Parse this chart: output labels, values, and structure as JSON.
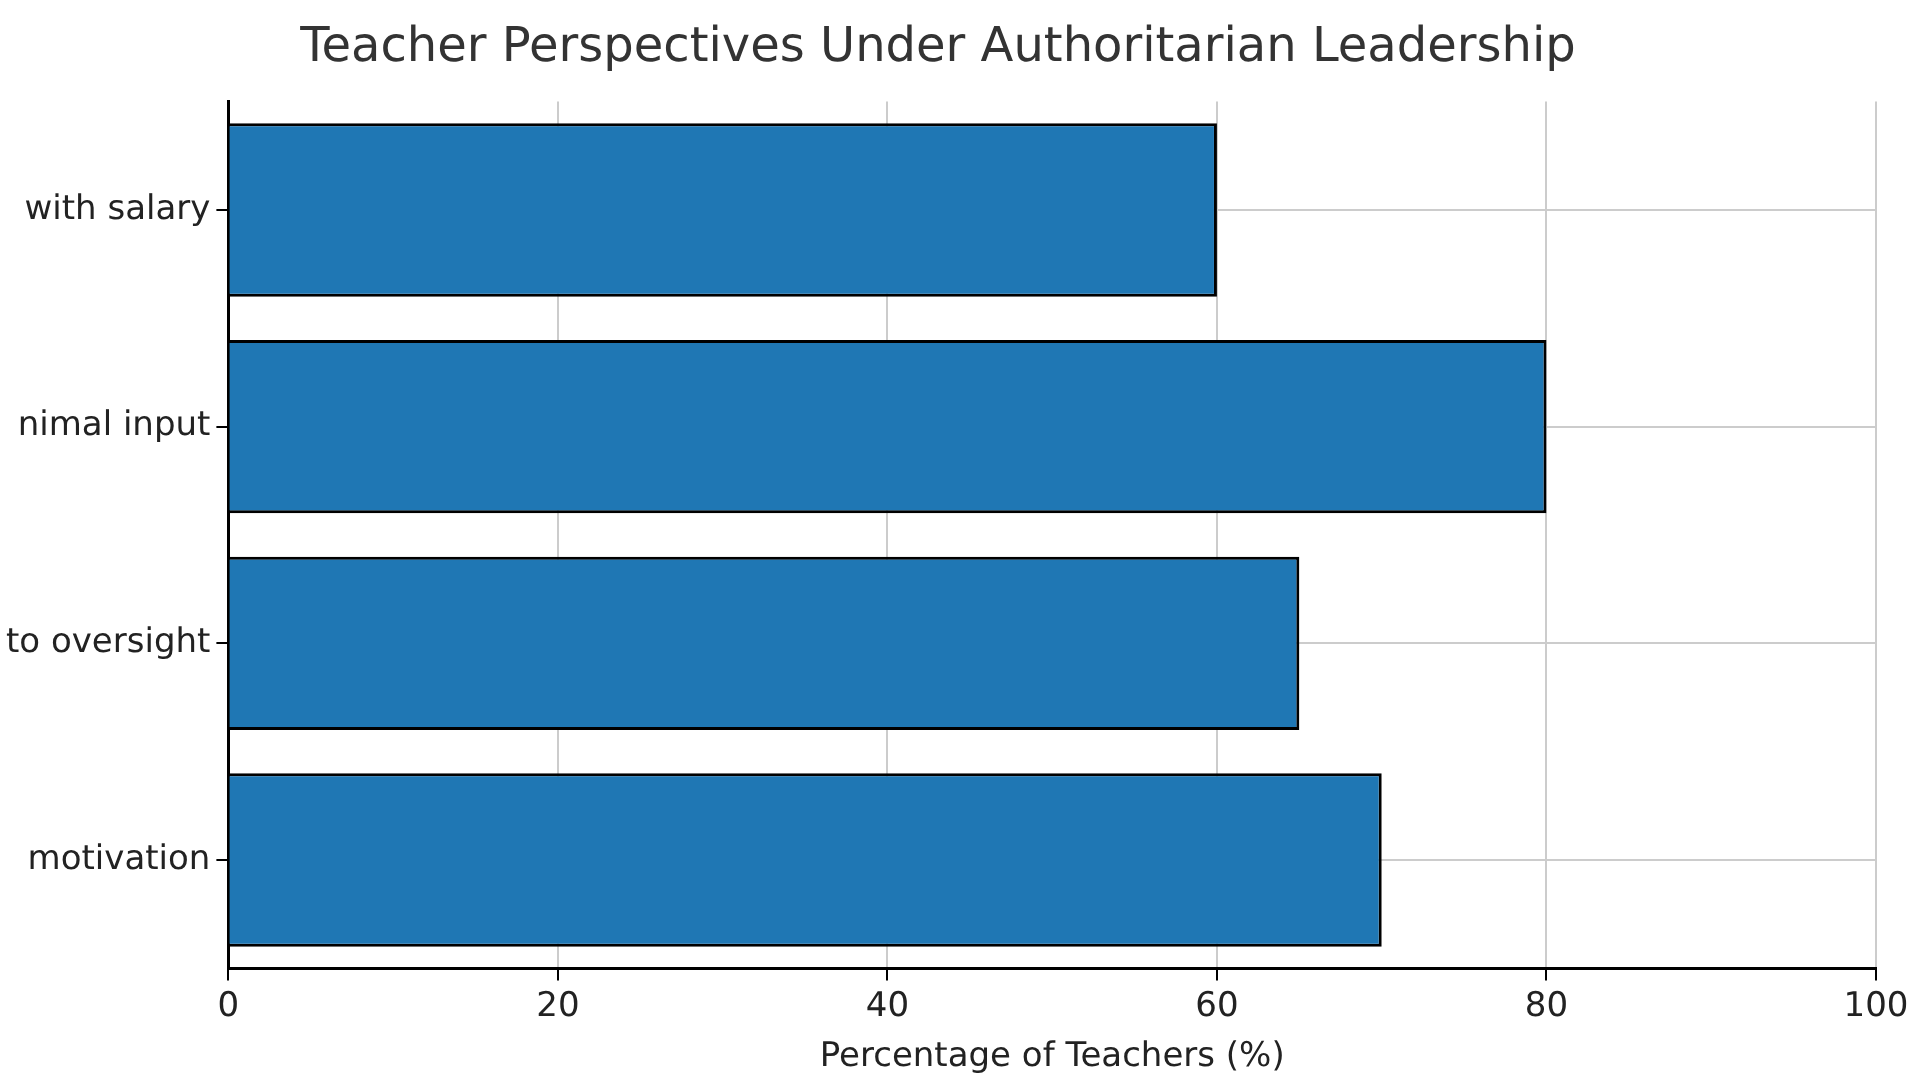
{
  "chart_data": {
    "type": "bar",
    "orientation": "horizontal",
    "title": "Teacher Perspectives Under Authoritarian Leadership",
    "xlabel": "Percentage of Teachers (%)",
    "categories": [
      "with salary",
      "nimal input",
      "to oversight",
      "motivation"
    ],
    "values": [
      60,
      80,
      65,
      70
    ],
    "color": "#1f77b4",
    "xlim": [
      0,
      100
    ],
    "xticks": [
      0,
      20,
      40,
      60,
      80,
      100
    ],
    "grid": true
  }
}
